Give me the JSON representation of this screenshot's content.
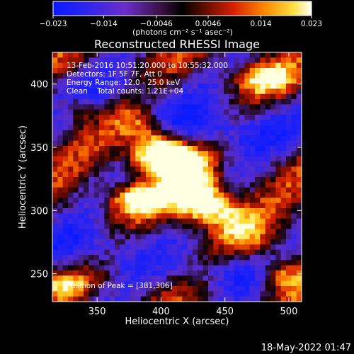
{
  "chart_data": {
    "type": "heatmap",
    "title": "Reconstructed RHESSI Image",
    "xlabel": "Heliocentric X (arcsec)",
    "ylabel": "Heliocentric Y (arcsec)",
    "xlim": [
      315,
      510
    ],
    "ylim": [
      228,
      425
    ],
    "x_ticks": [
      350,
      400,
      450,
      500
    ],
    "y_ticks": [
      250,
      300,
      350,
      400
    ],
    "colorbar": {
      "range": [
        -0.023,
        0.023
      ],
      "tick_labels": [
        "−0.023",
        "−0.014",
        "−0.0046",
        "0.0046",
        "0.014",
        "0.023"
      ],
      "tick_values": [
        -0.023,
        -0.014,
        -0.0046,
        0.0046,
        0.014,
        0.023
      ],
      "unit_label": "(photons cm⁻² s⁻¹ asec⁻²)"
    },
    "annotations": [
      "13-Feb-2016 10:51:20.000 to 10:55:32.000",
      "Detectors: 1F 5F 7F, Att 0",
      "Energy Range: 12.0 - 25.0 keV",
      "Clean    Total counts: 1.21E+04"
    ],
    "peak_label": "Position of Peak = [381,306]",
    "peak_position": [
      381,
      306
    ],
    "grid_size": [
      48,
      48
    ],
    "colors": {
      "blue": "#1a22ff",
      "purple": "#5a2ad0",
      "dark": "#1a0816",
      "red": "#cc1a00",
      "orange": "#ff8000",
      "yellow": "#ffdc30",
      "white": "#ffffe0"
    }
  },
  "footer_timestamp": "18-May-2022 01:47"
}
